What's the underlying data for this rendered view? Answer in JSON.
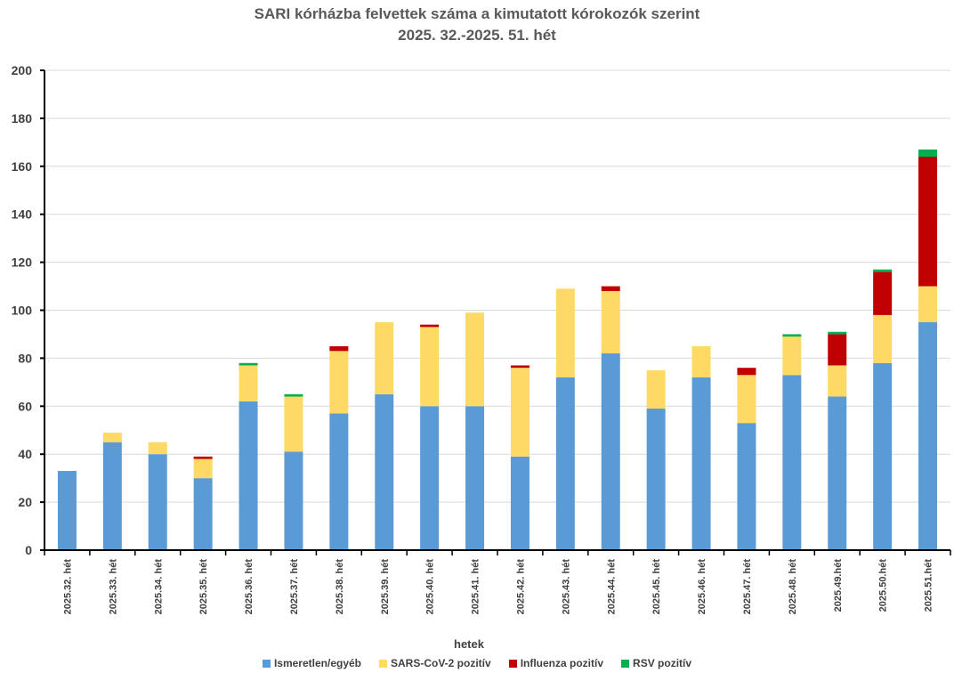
{
  "chart_data": {
    "type": "bar",
    "stacked": true,
    "title": "SARI kórházba felvettek száma a kimutatott kórokozók szerint",
    "subtitle": "2025. 32.-2025. 51. hét",
    "xlabel": "hetek",
    "ylabel": "",
    "ylim": [
      0,
      200
    ],
    "yticks": [
      0,
      20,
      40,
      60,
      80,
      100,
      120,
      140,
      160,
      180,
      200
    ],
    "grid": true,
    "legend_position": "bottom",
    "categories": [
      "2025.32. hét",
      "2025.33. hét",
      "2025.34. hét",
      "2025.35. hét",
      "2025.36. hét",
      "2025.37. hét",
      "2025.38. hét",
      "2025.39. hét",
      "2025.40. hét",
      "2025.41. hét",
      "2025.42. hét",
      "2025.43. hét",
      "2025.44. hét",
      "2025.45. hét",
      "2025.46. hét",
      "2025.47. hét",
      "2025.48. hét",
      "2025.49.hét",
      "2025.50.hét",
      "2025.51.hét"
    ],
    "series": [
      {
        "name": "Ismeretlen/egyéb",
        "color": "#5b9bd5",
        "values": [
          33,
          45,
          40,
          30,
          62,
          41,
          57,
          65,
          60,
          60,
          39,
          72,
          82,
          59,
          72,
          53,
          73,
          64,
          78,
          95
        ]
      },
      {
        "name": "SARS-CoV-2 pozitív",
        "color": "#ffd966",
        "values": [
          0,
          4,
          5,
          8,
          15,
          23,
          26,
          30,
          33,
          39,
          37,
          37,
          26,
          16,
          13,
          20,
          16,
          13,
          20,
          15
        ]
      },
      {
        "name": "Influenza pozitív",
        "color": "#c00000",
        "values": [
          0,
          0,
          0,
          1,
          0,
          0,
          2,
          0,
          1,
          0,
          1,
          0,
          2,
          0,
          0,
          3,
          0,
          13,
          18,
          54
        ]
      },
      {
        "name": "RSV pozitív",
        "color": "#00b050",
        "values": [
          0,
          0,
          0,
          0,
          1,
          1,
          0,
          0,
          0,
          0,
          0,
          0,
          0,
          0,
          0,
          0,
          1,
          1,
          1,
          3
        ]
      }
    ]
  }
}
